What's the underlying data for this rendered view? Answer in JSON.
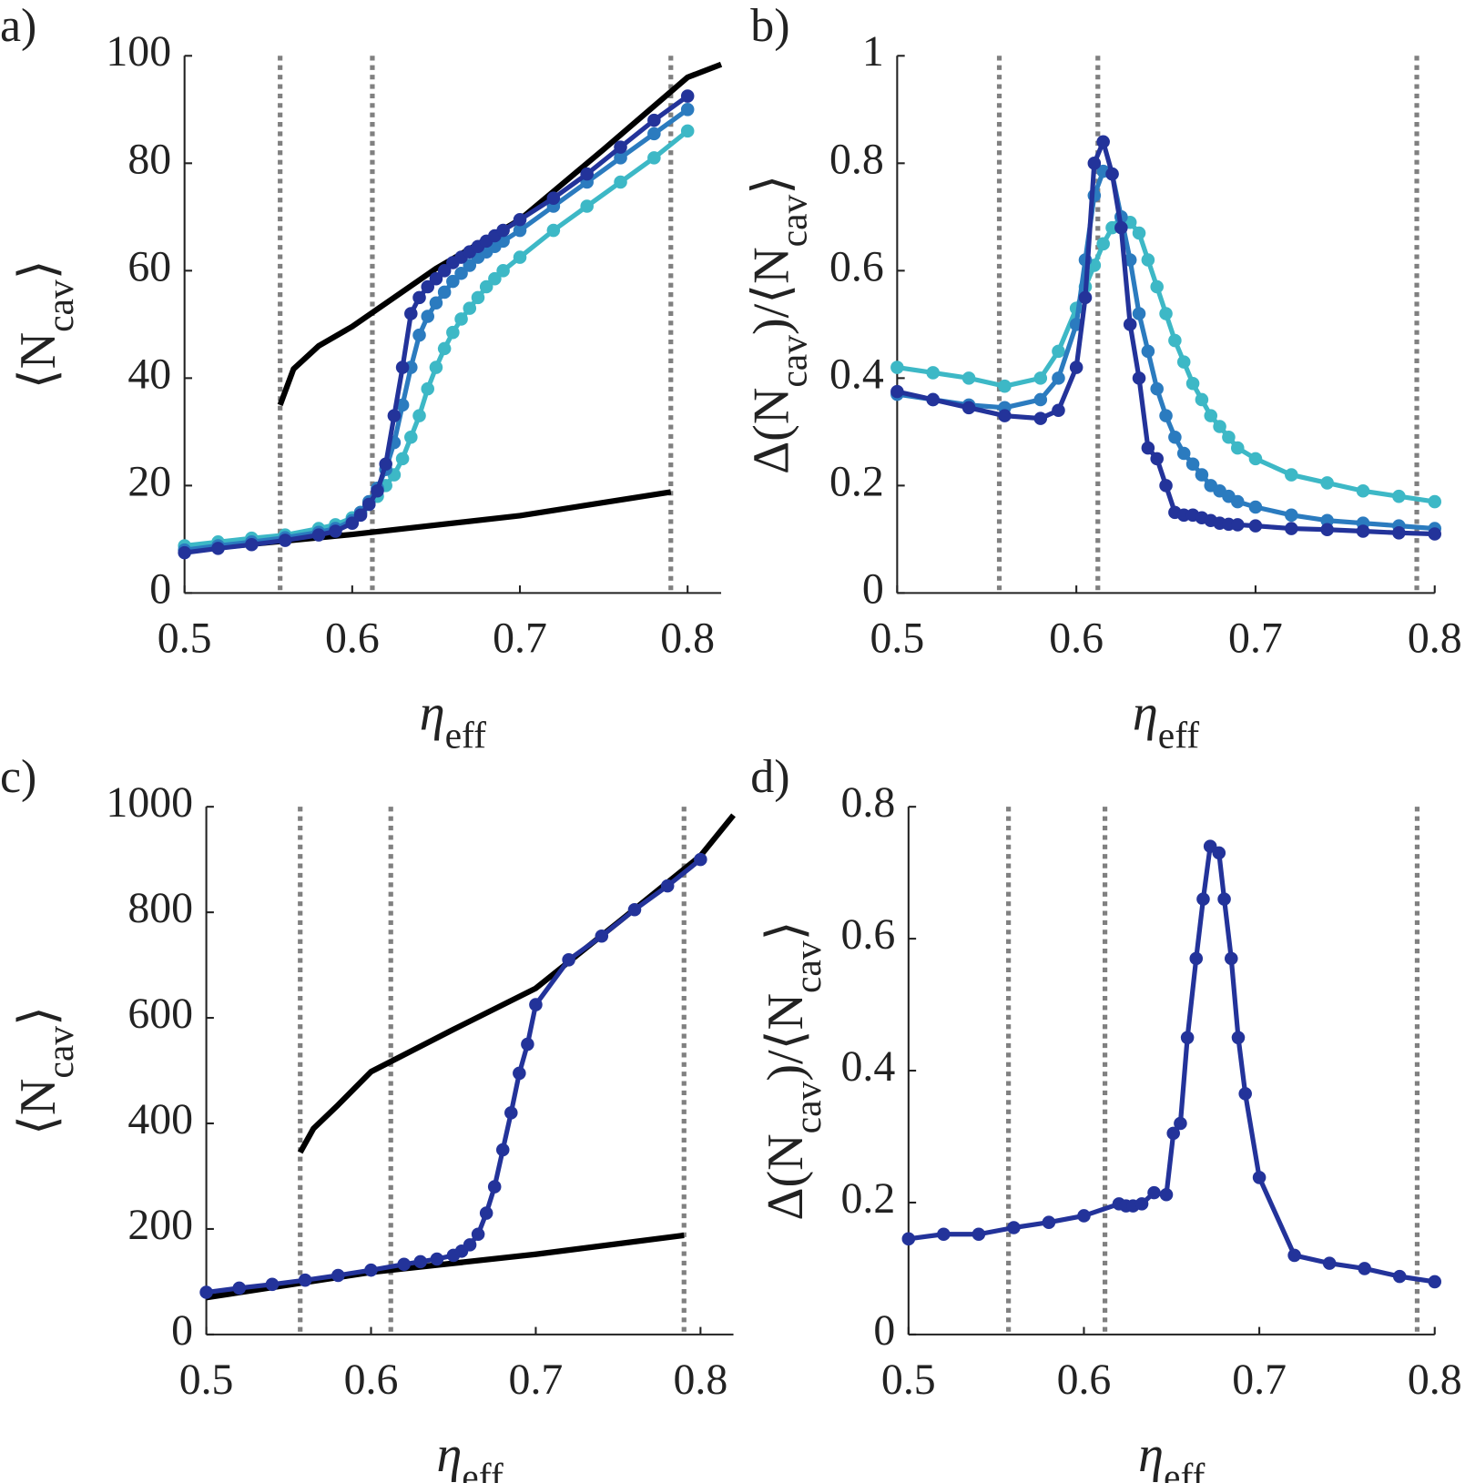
{
  "chart_data": [
    {
      "type": "line",
      "panel_label": "a)",
      "xlabel": [
        "η",
        "eff"
      ],
      "ylabel": [
        "⟨N",
        "cav",
        "⟩"
      ],
      "xlim": [
        0.5,
        0.82
      ],
      "ylim": [
        0,
        100
      ],
      "xticks": [
        0.5,
        0.6,
        0.7,
        0.8
      ],
      "yticks": [
        0,
        20,
        40,
        60,
        80,
        100
      ],
      "vlines": [
        0.557,
        0.612,
        0.79
      ],
      "vline_color": "#808080",
      "series": [
        {
          "color": "#000000",
          "markers": false,
          "x": [
            0.557,
            0.565,
            0.58,
            0.6,
            0.65,
            0.7,
            0.75,
            0.8,
            0.82
          ],
          "values": [
            35,
            41.7,
            46,
            49.6,
            60.4,
            69.5,
            82.6,
            96,
            98.4
          ]
        },
        {
          "color": "#000000",
          "markers": false,
          "x": [
            0.5,
            0.6,
            0.7,
            0.79
          ],
          "values": [
            7.9,
            10.9,
            14.4,
            18.8
          ]
        },
        {
          "color": "#3db8c6",
          "markers": true,
          "x": [
            0.5,
            0.52,
            0.54,
            0.56,
            0.58,
            0.59,
            0.6,
            0.605,
            0.61,
            0.615,
            0.62,
            0.625,
            0.63,
            0.635,
            0.64,
            0.645,
            0.65,
            0.655,
            0.66,
            0.665,
            0.67,
            0.675,
            0.68,
            0.685,
            0.69,
            0.7,
            0.72,
            0.74,
            0.76,
            0.78,
            0.8
          ],
          "values": [
            8.8,
            9.5,
            10.2,
            10.8,
            12,
            12.7,
            14,
            15,
            16.5,
            18,
            20,
            22,
            25,
            29,
            33,
            38,
            42,
            45.5,
            48.5,
            51,
            53,
            55,
            57,
            58.5,
            60,
            62.5,
            67.5,
            72,
            76.5,
            81,
            86
          ]
        },
        {
          "color": "#2b7bbf",
          "markers": true,
          "x": [
            0.5,
            0.52,
            0.54,
            0.56,
            0.58,
            0.59,
            0.6,
            0.605,
            0.61,
            0.615,
            0.62,
            0.625,
            0.63,
            0.635,
            0.64,
            0.645,
            0.65,
            0.655,
            0.66,
            0.665,
            0.67,
            0.675,
            0.68,
            0.685,
            0.69,
            0.7,
            0.72,
            0.74,
            0.76,
            0.78,
            0.8
          ],
          "values": [
            8,
            8.8,
            9.5,
            10.3,
            11.3,
            12,
            13.5,
            15,
            17,
            19.5,
            23,
            28,
            35,
            42,
            48,
            51.5,
            54,
            56,
            58,
            59.5,
            61,
            62.5,
            63.5,
            64.5,
            65.5,
            67.5,
            72,
            76.5,
            81,
            85.5,
            90
          ]
        },
        {
          "color": "#23339a",
          "markers": true,
          "x": [
            0.5,
            0.52,
            0.54,
            0.56,
            0.58,
            0.59,
            0.6,
            0.605,
            0.61,
            0.615,
            0.62,
            0.625,
            0.63,
            0.635,
            0.64,
            0.645,
            0.65,
            0.655,
            0.66,
            0.665,
            0.67,
            0.675,
            0.68,
            0.685,
            0.69,
            0.7,
            0.72,
            0.74,
            0.76,
            0.78,
            0.8
          ],
          "values": [
            7.5,
            8.3,
            9,
            9.8,
            10.8,
            11.5,
            13,
            14.5,
            16.5,
            19,
            24,
            33,
            42,
            52,
            55,
            57,
            58.5,
            60,
            61.5,
            62.5,
            63.5,
            64.5,
            65.5,
            66.5,
            67.5,
            69.5,
            73.5,
            78,
            83,
            88,
            92.5
          ]
        }
      ]
    },
    {
      "type": "line",
      "panel_label": "b)",
      "xlabel": [
        "η",
        "eff"
      ],
      "ylabel": [
        "Δ(N",
        "cav",
        ")/⟨N",
        "cav",
        "⟩"
      ],
      "xlim": [
        0.5,
        0.8
      ],
      "ylim": [
        0,
        1
      ],
      "xticks": [
        0.5,
        0.6,
        0.7,
        0.8
      ],
      "yticks": [
        0,
        0.2,
        0.4,
        0.6,
        0.8,
        1
      ],
      "vlines": [
        0.557,
        0.612,
        0.79
      ],
      "vline_color": "#808080",
      "series": [
        {
          "color": "#3db8c6",
          "markers": true,
          "x": [
            0.5,
            0.52,
            0.54,
            0.56,
            0.58,
            0.59,
            0.6,
            0.605,
            0.61,
            0.615,
            0.62,
            0.625,
            0.63,
            0.635,
            0.64,
            0.645,
            0.65,
            0.655,
            0.66,
            0.665,
            0.67,
            0.675,
            0.68,
            0.685,
            0.69,
            0.7,
            0.72,
            0.74,
            0.76,
            0.78,
            0.8
          ],
          "values": [
            0.42,
            0.41,
            0.4,
            0.385,
            0.4,
            0.45,
            0.53,
            0.57,
            0.61,
            0.65,
            0.68,
            0.7,
            0.69,
            0.67,
            0.62,
            0.57,
            0.52,
            0.47,
            0.43,
            0.39,
            0.36,
            0.33,
            0.31,
            0.29,
            0.27,
            0.25,
            0.22,
            0.205,
            0.19,
            0.18,
            0.17
          ]
        },
        {
          "color": "#2b7bbf",
          "markers": true,
          "x": [
            0.5,
            0.52,
            0.54,
            0.56,
            0.58,
            0.59,
            0.6,
            0.605,
            0.61,
            0.615,
            0.62,
            0.625,
            0.63,
            0.635,
            0.64,
            0.645,
            0.65,
            0.655,
            0.66,
            0.665,
            0.67,
            0.675,
            0.68,
            0.685,
            0.69,
            0.7,
            0.72,
            0.74,
            0.76,
            0.78,
            0.8
          ],
          "values": [
            0.37,
            0.36,
            0.35,
            0.345,
            0.36,
            0.4,
            0.5,
            0.62,
            0.74,
            0.785,
            0.78,
            0.7,
            0.62,
            0.52,
            0.45,
            0.38,
            0.33,
            0.29,
            0.26,
            0.24,
            0.22,
            0.2,
            0.19,
            0.18,
            0.17,
            0.16,
            0.145,
            0.135,
            0.13,
            0.125,
            0.12
          ]
        },
        {
          "color": "#23339a",
          "markers": true,
          "x": [
            0.5,
            0.52,
            0.54,
            0.56,
            0.58,
            0.59,
            0.6,
            0.605,
            0.61,
            0.615,
            0.62,
            0.625,
            0.63,
            0.635,
            0.64,
            0.645,
            0.65,
            0.655,
            0.66,
            0.665,
            0.67,
            0.675,
            0.68,
            0.685,
            0.69,
            0.7,
            0.72,
            0.74,
            0.76,
            0.78,
            0.8
          ],
          "values": [
            0.375,
            0.36,
            0.345,
            0.33,
            0.325,
            0.34,
            0.42,
            0.55,
            0.8,
            0.84,
            0.78,
            0.68,
            0.5,
            0.4,
            0.27,
            0.25,
            0.2,
            0.15,
            0.145,
            0.145,
            0.14,
            0.135,
            0.13,
            0.128,
            0.127,
            0.125,
            0.12,
            0.118,
            0.115,
            0.112,
            0.11
          ]
        }
      ]
    },
    {
      "type": "line",
      "panel_label": "c)",
      "xlabel": [
        "η",
        "eff"
      ],
      "ylabel": [
        "⟨N",
        "cav",
        "⟩"
      ],
      "xlim": [
        0.5,
        0.82
      ],
      "ylim": [
        0,
        1000
      ],
      "xticks": [
        0.5,
        0.6,
        0.7,
        0.8
      ],
      "yticks": [
        0,
        200,
        400,
        600,
        800,
        1000
      ],
      "vlines": [
        0.557,
        0.612,
        0.79
      ],
      "vline_color": "#808080",
      "series": [
        {
          "color": "#000000",
          "markers": false,
          "x": [
            0.557,
            0.565,
            0.58,
            0.6,
            0.65,
            0.7,
            0.75,
            0.8,
            0.82
          ],
          "values": [
            345,
            390,
            435,
            498,
            578,
            656,
            781,
            907,
            984
          ]
        },
        {
          "color": "#000000",
          "markers": false,
          "x": [
            0.5,
            0.6,
            0.7,
            0.79
          ],
          "values": [
            70,
            118,
            152,
            188
          ]
        },
        {
          "color": "#23339a",
          "markers": true,
          "x": [
            0.5,
            0.52,
            0.54,
            0.56,
            0.58,
            0.6,
            0.62,
            0.63,
            0.64,
            0.65,
            0.655,
            0.66,
            0.665,
            0.67,
            0.675,
            0.68,
            0.685,
            0.69,
            0.695,
            0.7,
            0.72,
            0.74,
            0.76,
            0.78,
            0.8
          ],
          "values": [
            80,
            88,
            95,
            103,
            112,
            122,
            133,
            138,
            143,
            150,
            158,
            170,
            190,
            230,
            280,
            350,
            420,
            495,
            550,
            625,
            710,
            755,
            805,
            850,
            900
          ]
        }
      ]
    },
    {
      "type": "line",
      "panel_label": "d)",
      "xlabel": [
        "η",
        "eff"
      ],
      "ylabel": [
        "Δ(N",
        "cav",
        ")/⟨N",
        "cav",
        "⟩"
      ],
      "xlim": [
        0.5,
        0.8
      ],
      "ylim": [
        0,
        0.8
      ],
      "xticks": [
        0.5,
        0.6,
        0.7,
        0.8
      ],
      "yticks": [
        0,
        0.2,
        0.4,
        0.6,
        0.8
      ],
      "vlines": [
        0.557,
        0.612,
        0.79
      ],
      "vline_color": "#808080",
      "series": [
        {
          "color": "#23339a",
          "markers": true,
          "x": [
            0.5,
            0.52,
            0.54,
            0.56,
            0.58,
            0.6,
            0.62,
            0.624,
            0.628,
            0.633,
            0.64,
            0.647,
            0.651,
            0.655,
            0.659,
            0.664,
            0.668,
            0.672,
            0.677,
            0.68,
            0.684,
            0.688,
            0.692,
            0.7,
            0.72,
            0.74,
            0.76,
            0.78,
            0.8
          ],
          "values": [
            0.145,
            0.152,
            0.152,
            0.162,
            0.17,
            0.18,
            0.198,
            0.195,
            0.195,
            0.198,
            0.215,
            0.212,
            0.305,
            0.32,
            0.45,
            0.57,
            0.66,
            0.74,
            0.73,
            0.66,
            0.57,
            0.45,
            0.365,
            0.238,
            0.12,
            0.108,
            0.1,
            0.088,
            0.08
          ]
        }
      ]
    }
  ]
}
